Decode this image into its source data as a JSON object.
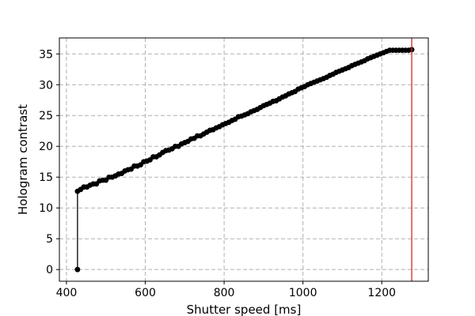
{
  "chart_data": {
    "type": "line",
    "title": "",
    "xlabel": "Shutter speed [ms]",
    "ylabel": "Hologram contrast",
    "xlim": [
      382,
      1318
    ],
    "ylim": [
      -1.9,
      37.6
    ],
    "xticks": [
      400,
      600,
      800,
      1000,
      1200
    ],
    "yticks": [
      0,
      5,
      10,
      15,
      20,
      25,
      30,
      35
    ],
    "grid": true,
    "grid_style": "dashed",
    "legend": "none",
    "series": [
      {
        "color": "#000000",
        "marker": "circle",
        "x": [
          428,
          428,
          436,
          444,
          452,
          460,
          468,
          476,
          484,
          492,
          500,
          508,
          516,
          524,
          532,
          540,
          548,
          556,
          564,
          572,
          580,
          588,
          596,
          604,
          612,
          620,
          628,
          636,
          644,
          652,
          660,
          668,
          676,
          684,
          692,
          700,
          708,
          716,
          724,
          732,
          740,
          748,
          756,
          764,
          772,
          780,
          788,
          796,
          804,
          812,
          820,
          828,
          836,
          844,
          852,
          860,
          868,
          876,
          884,
          892,
          900,
          908,
          916,
          924,
          932,
          940,
          948,
          956,
          964,
          972,
          980,
          988,
          996,
          1004,
          1012,
          1020,
          1028,
          1036,
          1044,
          1052,
          1060,
          1068,
          1076,
          1084,
          1092,
          1100,
          1108,
          1116,
          1124,
          1132,
          1140,
          1148,
          1156,
          1164,
          1172,
          1180,
          1188,
          1196,
          1204,
          1212,
          1220,
          1228,
          1236,
          1244,
          1252,
          1260,
          1268,
          1276
        ],
        "y": [
          0,
          12.7,
          13.0,
          13.4,
          13.4,
          13.7,
          13.9,
          13.9,
          14.4,
          14.5,
          14.5,
          15.0,
          15.0,
          15.2,
          15.5,
          15.6,
          16.0,
          16.2,
          16.3,
          16.8,
          16.8,
          17.0,
          17.5,
          17.6,
          17.8,
          18.3,
          18.3,
          18.6,
          19.0,
          19.3,
          19.4,
          19.6,
          20.0,
          20.0,
          20.4,
          20.6,
          20.8,
          21.2,
          21.3,
          21.7,
          21.7,
          22.0,
          22.3,
          22.6,
          22.7,
          23.0,
          23.2,
          23.5,
          23.7,
          23.9,
          24.2,
          24.4,
          24.8,
          24.9,
          25.1,
          25.3,
          25.6,
          25.8,
          26.0,
          26.3,
          26.6,
          26.8,
          27.0,
          27.3,
          27.4,
          27.7,
          28.0,
          28.2,
          28.5,
          28.7,
          28.9,
          29.3,
          29.5,
          29.7,
          30.0,
          30.2,
          30.4,
          30.6,
          30.8,
          31.0,
          31.2,
          31.5,
          31.7,
          32.0,
          32.2,
          32.4,
          32.6,
          32.8,
          33.1,
          33.3,
          33.5,
          33.7,
          33.9,
          34.2,
          34.4,
          34.6,
          34.8,
          35.0,
          35.2,
          35.4,
          35.6,
          35.6,
          35.6,
          35.6,
          35.6,
          35.6,
          35.6,
          35.7
        ]
      }
    ],
    "vline": {
      "x": 1276,
      "color": "#d62728"
    }
  }
}
